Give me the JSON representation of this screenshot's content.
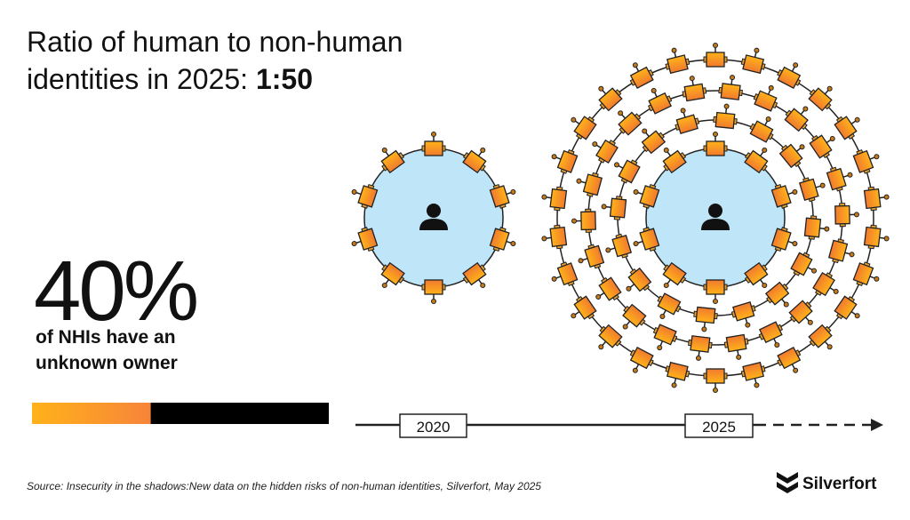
{
  "title": {
    "line1": "Ratio of human to non-human",
    "line2": "identities in 2025:",
    "ratio": "1:50"
  },
  "stat": {
    "label": "40%",
    "value": 40,
    "caption_line1": "of NHIs have an",
    "caption_line2": "unknown owner"
  },
  "timeline": {
    "start": "2020",
    "end": "2025"
  },
  "source": "Source: Insecurity in the shadows:New data on the hidden risks of non-human identities, Silverfort, May 2025",
  "brand": "Silverfort"
}
